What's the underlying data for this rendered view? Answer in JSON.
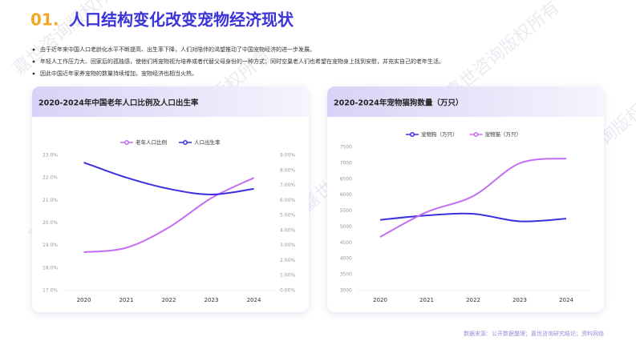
{
  "header": {
    "number": "01.",
    "title": "人口结构变化改变宠物经济现状"
  },
  "bullets": [
    "由于近年来中国人口老龄化水平不断提高、出生率下降，人们对陪伴的渴望推动了中国宠物经济的进一步发展。",
    "年轻人工作压力大、回家后的孤独感，使他们将宠物视为培养或者代替父母身份的一种方式；同时空巢老人们也希望在宠物身上找到安慰，并充实自己的老年生活。",
    "因此中国近年家养宠物的数量持续增加，宠物经济也相当火热。"
  ],
  "chart_data": [
    {
      "type": "line",
      "title": "2020-2024年中国老年人口比例及人口出生率",
      "categories": [
        "2020",
        "2021",
        "2022",
        "2023",
        "2024"
      ],
      "series": [
        {
          "name": "老年人口比例",
          "color": "#c46cf2",
          "values": [
            18.7,
            18.9,
            19.8,
            21.1,
            22.0
          ]
        },
        {
          "name": "人口出生率",
          "color": "#3b2fe0",
          "axis": "y2",
          "values": [
            8.52,
            7.52,
            6.77,
            6.39,
            6.77
          ]
        }
      ],
      "ylim": [
        17,
        23
      ],
      "yticks": [
        {
          "value": 17,
          "label": "17.0%"
        },
        {
          "value": 18,
          "label": "18.0%"
        },
        {
          "value": 19,
          "label": "19.0%"
        },
        {
          "value": 20,
          "label": "20.0%"
        },
        {
          "value": 21,
          "label": "21.0%"
        },
        {
          "value": 22,
          "label": "22.0%"
        },
        {
          "value": 23,
          "label": "23.0%"
        }
      ],
      "y2lim": [
        0,
        9
      ],
      "y2ticks": [
        {
          "value": 0,
          "label": "0.00%"
        },
        {
          "value": 1,
          "label": "1.00%"
        },
        {
          "value": 2,
          "label": "2.00%"
        },
        {
          "value": 3,
          "label": "3.00%"
        },
        {
          "value": 4,
          "label": "4.00%"
        },
        {
          "value": 5,
          "label": "5.00%"
        },
        {
          "value": 6,
          "label": "6.00%"
        },
        {
          "value": 7,
          "label": "7.00%"
        },
        {
          "value": 8,
          "label": "8.00%"
        },
        {
          "value": 9,
          "label": "9.00%"
        }
      ]
    },
    {
      "type": "line",
      "title": "2020-2024年宠物猫狗数量（万只）",
      "categories": [
        "2020",
        "2021",
        "2022",
        "2023",
        "2024"
      ],
      "series": [
        {
          "name": "宠物狗（万只）",
          "color": "#3b2fe0",
          "values": [
            5222,
            5360,
            5410,
            5175,
            5258
          ]
        },
        {
          "name": "宠物猫（万只）",
          "color": "#c46cf2",
          "values": [
            4686,
            5465,
            5967,
            6997,
            7148
          ]
        }
      ],
      "ylim": [
        3000,
        7500
      ],
      "yticks": [
        3000,
        3500,
        4000,
        4500,
        5000,
        5500,
        6000,
        6500,
        7000,
        7500
      ]
    }
  ],
  "source": "数据来源：公开数据整理；嘉世咨询研究结论；资料网络",
  "watermark": "嘉世咨询版权所有"
}
